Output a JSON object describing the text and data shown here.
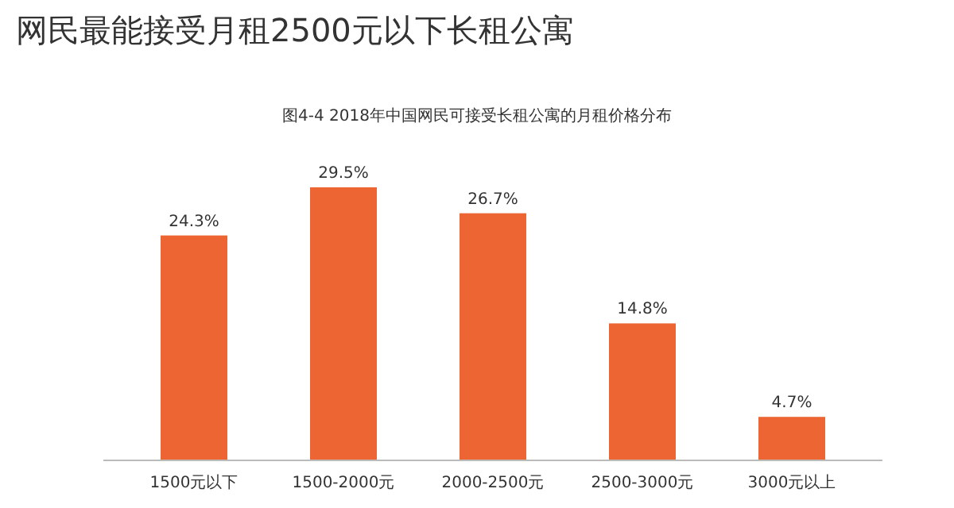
{
  "chart_data": {
    "type": "bar",
    "title": "网民最能接受月租2500元以下长租公寓",
    "subtitle": "图4-4 2018年中国网民可接受长租公寓的月租价格分布",
    "categories": [
      "1500元以下",
      "1500-2000元",
      "2000-2500元",
      "2500-3000元",
      "3000元以上"
    ],
    "values": [
      24.3,
      29.5,
      26.7,
      14.8,
      4.7
    ],
    "value_labels": [
      "24.3%",
      "29.5%",
      "26.7%",
      "14.8%",
      "4.7%"
    ],
    "color": "#ec6533"
  }
}
